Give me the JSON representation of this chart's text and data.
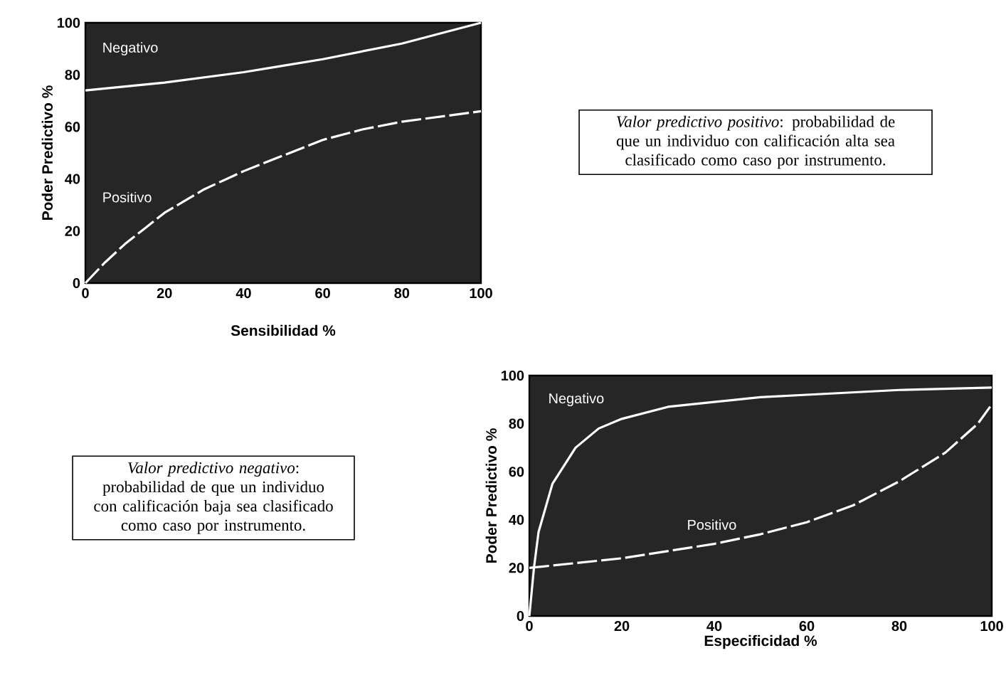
{
  "chart_data": [
    {
      "type": "line",
      "xlabel": "Sensibilidad %",
      "ylabel": "Poder Predictivo %",
      "xlim": [
        0,
        100
      ],
      "ylim": [
        0,
        100
      ],
      "xticks": [
        0,
        20,
        40,
        60,
        80,
        100
      ],
      "yticks": [
        0,
        20,
        40,
        60,
        80,
        100
      ],
      "series": [
        {
          "name": "Negativo",
          "color": "#ffffff",
          "line_style": "solid",
          "x": [
            0,
            10,
            20,
            30,
            40,
            50,
            60,
            70,
            80,
            90,
            100
          ],
          "values": [
            74,
            75.5,
            77,
            79,
            81,
            83.5,
            86,
            89,
            92,
            96,
            100
          ]
        },
        {
          "name": "Positivo",
          "color": "#ffffff",
          "line_style": "dashed",
          "x": [
            0,
            5,
            10,
            15,
            20,
            30,
            40,
            50,
            60,
            70,
            80,
            90,
            100
          ],
          "values": [
            0,
            8,
            15,
            21,
            27,
            36,
            43,
            49,
            55,
            59,
            62,
            64,
            66
          ]
        }
      ]
    },
    {
      "type": "other",
      "annotations": [
        "*Valor predictivo positivo*: probabilidad de que un individuo con calificación alta sea clasificado como caso por instrumento."
      ]
    },
    {
      "type": "other",
      "annotations": [
        "*Valor predictivo negativo*: probabilidad de que un individuo con calificación baja sea clasificado como caso por instrumento."
      ]
    },
    {
      "type": "line",
      "xlabel": "Especificidad %",
      "ylabel": "Poder Predictivo %",
      "xlim": [
        0,
        100
      ],
      "ylim": [
        0,
        100
      ],
      "xticks": [
        0,
        20,
        40,
        60,
        80,
        100
      ],
      "yticks": [
        0,
        20,
        40,
        60,
        80,
        100
      ],
      "series": [
        {
          "name": "Negativo",
          "color": "#ffffff",
          "line_style": "solid",
          "x": [
            0,
            1,
            2,
            5,
            10,
            15,
            20,
            30,
            40,
            50,
            60,
            80,
            100
          ],
          "values": [
            0,
            20,
            35,
            55,
            70,
            78,
            82,
            87,
            89,
            91,
            92,
            94,
            95
          ]
        },
        {
          "name": "Positivo",
          "color": "#ffffff",
          "line_style": "dashed",
          "x": [
            0,
            10,
            20,
            30,
            40,
            50,
            60,
            70,
            80,
            90,
            97,
            100
          ],
          "values": [
            20,
            22,
            24,
            27,
            30,
            34,
            39,
            46,
            56,
            68,
            80,
            88
          ]
        }
      ]
    }
  ]
}
